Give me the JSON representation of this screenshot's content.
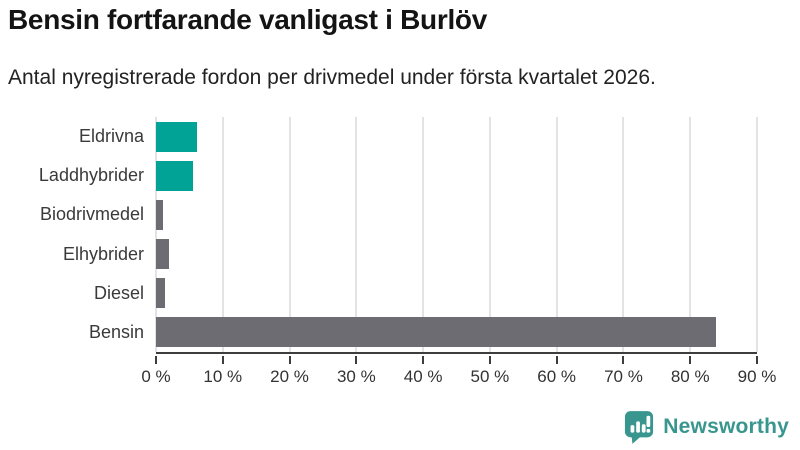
{
  "chart_data": {
    "type": "bar",
    "orientation": "horizontal",
    "title": "Bensin fortfarande vanligast i Burlöv",
    "subtitle": "Antal nyregistrerade fordon per drivmedel under första kvartalet 2026.",
    "categories": [
      "Eldrivna",
      "Laddhybrider",
      "Biodrivmedel",
      "Elhybrider",
      "Diesel",
      "Bensin"
    ],
    "values": [
      6.1,
      5.6,
      1.1,
      2.0,
      1.4,
      83.9
    ],
    "unit": "%",
    "xlabel": "",
    "ylabel": "",
    "xlim": [
      0,
      90
    ],
    "xticks": [
      0,
      10,
      20,
      30,
      40,
      50,
      60,
      70,
      80,
      90
    ],
    "xtick_labels": [
      "0 %",
      "10 %",
      "20 %",
      "30 %",
      "40 %",
      "50 %",
      "60 %",
      "70 %",
      "80 %",
      "90 %"
    ],
    "bar_colors": [
      "#00A396",
      "#00A396",
      "#6C6C72",
      "#6C6C72",
      "#6C6C72",
      "#6C6C72"
    ],
    "grid": true,
    "gridline_color": "#e3e3e6",
    "axis_color": "#3d3d3d",
    "legend": "none"
  },
  "branding": {
    "logo_text": "Newsworthy",
    "logo_color": "#38968E",
    "logo_icon": "newsworthy-chart-bubble-icon"
  }
}
